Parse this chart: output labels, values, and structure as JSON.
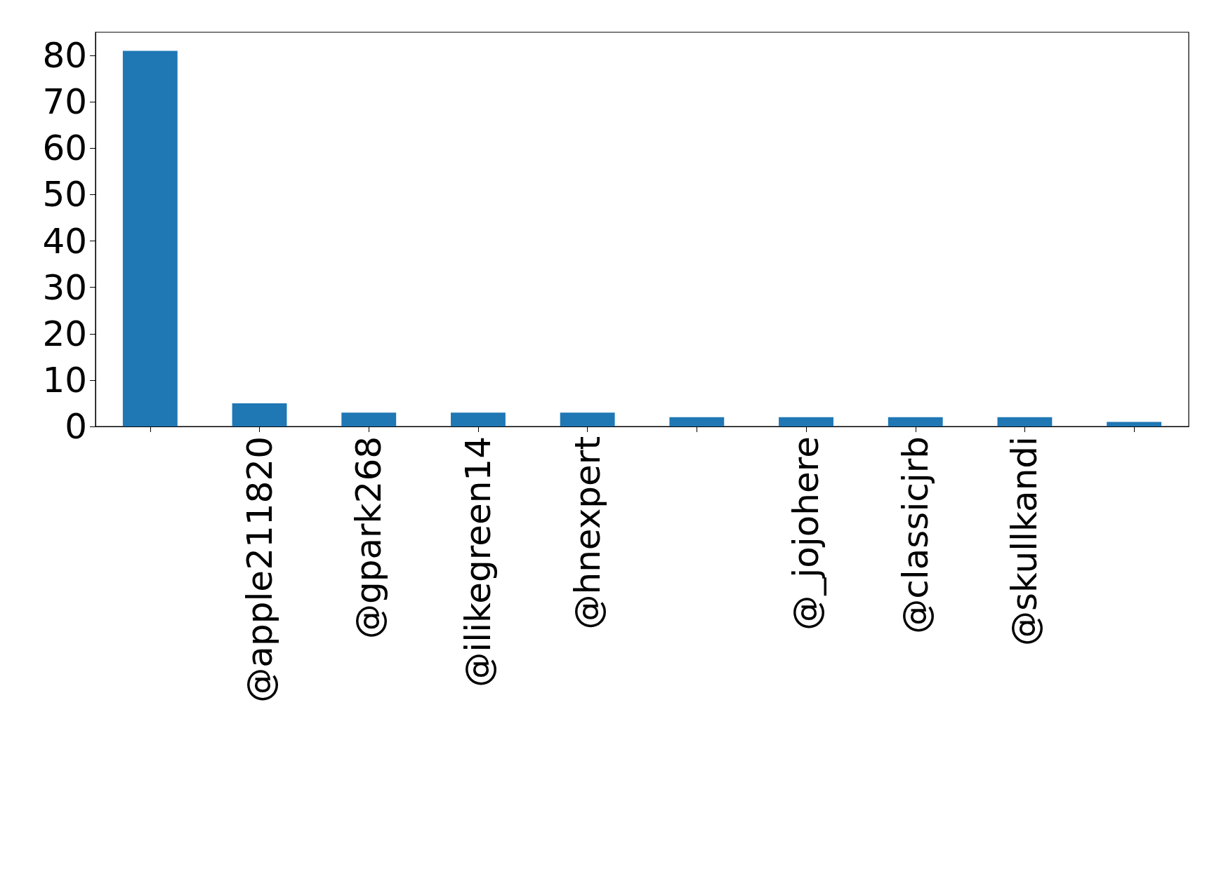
{
  "chart_data": {
    "type": "bar",
    "categories": [
      null,
      "@apple211820",
      "@gpark268",
      "@ilikegreen14",
      "@hnexpert",
      null,
      "@_jojohere",
      "@classicjrb",
      "@skullkandi",
      null
    ],
    "values": [
      81,
      5,
      3,
      3,
      3,
      2,
      2,
      2,
      2,
      1
    ],
    "color": "#1f77b4",
    "ylim": [
      0,
      85
    ],
    "yticks": [
      0,
      10,
      20,
      30,
      40,
      50,
      60,
      70,
      80
    ]
  }
}
